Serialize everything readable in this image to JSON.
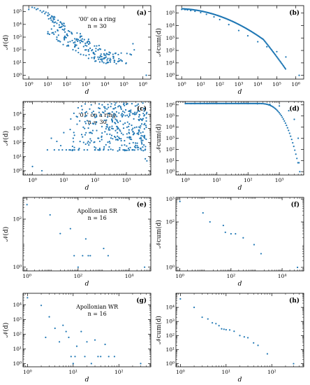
{
  "colors": {
    "marker": "#1f77b4",
    "axis": "#000000"
  },
  "chart_data": [
    {
      "panel": "(a)",
      "type": "scatter",
      "xscale": "log",
      "yscale": "log",
      "xlim": [
        0.5,
        2600000
      ],
      "ylim": [
        0.5,
        300000
      ],
      "ylabel": "𝒩(d)",
      "xlabel": "d",
      "xticks": [
        {
          "v": 1,
          "t": "10⁰"
        },
        {
          "v": 10,
          "t": "10¹"
        },
        {
          "v": 100,
          "t": "10²"
        },
        {
          "v": 1000,
          "t": "10³"
        },
        {
          "v": 10000,
          "t": "10⁴"
        },
        {
          "v": 100000,
          "t": "10⁵"
        },
        {
          "v": 1000000,
          "t": "10⁶"
        }
      ],
      "yticks": [
        {
          "v": 1,
          "t": "10⁰"
        },
        {
          "v": 10,
          "t": "10¹"
        },
        {
          "v": 100,
          "t": "10²"
        },
        {
          "v": 1000,
          "t": "10³"
        },
        {
          "v": 10000,
          "t": "10⁴"
        },
        {
          "v": 100000,
          "t": "10⁵"
        }
      ],
      "annotation": [
        "'00' on a ring",
        "n = 30"
      ],
      "gen": "a",
      "points": [
        [
          1,
          150000
        ],
        [
          1.5,
          220000
        ],
        [
          2,
          200000
        ],
        [
          2.5,
          150000
        ],
        [
          3,
          170000
        ],
        [
          4,
          120000
        ],
        [
          5,
          90000
        ],
        [
          6,
          110000
        ],
        [
          7,
          70000
        ],
        [
          8,
          90000
        ],
        [
          10,
          50000
        ],
        [
          12,
          60000
        ],
        [
          14,
          30000
        ],
        [
          16,
          45000
        ],
        [
          20,
          25000
        ],
        [
          25,
          15000
        ],
        [
          30,
          12000
        ],
        [
          40,
          9000
        ],
        [
          50,
          6000
        ],
        [
          60,
          4000
        ],
        [
          80,
          2500
        ],
        [
          100,
          1500
        ],
        [
          300000,
          300
        ],
        [
          350000,
          100
        ],
        [
          1500000,
          1
        ]
      ]
    },
    {
      "panel": "(b)",
      "type": "scatter",
      "xscale": "log",
      "yscale": "log",
      "xlim": [
        0.5,
        2600000
      ],
      "ylim": [
        0.5,
        400000
      ],
      "ylabel": "𝒩cum(d)",
      "xlabel": "d",
      "xticks": [
        {
          "v": 1,
          "t": "10⁰"
        },
        {
          "v": 10,
          "t": "10¹"
        },
        {
          "v": 100,
          "t": "10²"
        },
        {
          "v": 1000,
          "t": "10³"
        },
        {
          "v": 10000,
          "t": "10⁴"
        },
        {
          "v": 100000,
          "t": "10⁵"
        },
        {
          "v": 1000000,
          "t": "10⁶"
        }
      ],
      "yticks": [
        {
          "v": 1,
          "t": "10⁰"
        },
        {
          "v": 10,
          "t": "10¹"
        },
        {
          "v": 100,
          "t": "10²"
        },
        {
          "v": 1000,
          "t": "10³"
        },
        {
          "v": 10000,
          "t": "10⁴"
        },
        {
          "v": 100000,
          "t": "10⁵"
        }
      ],
      "gen": "b",
      "points": [
        [
          1,
          200000
        ],
        [
          1.5,
          190000
        ],
        [
          2,
          180000
        ],
        [
          3,
          160000
        ],
        [
          5,
          140000
        ],
        [
          10,
          110000
        ],
        [
          20,
          80000
        ],
        [
          50,
          50000
        ],
        [
          100,
          30000
        ],
        [
          300,
          12000
        ],
        [
          1000,
          4000
        ],
        [
          3000,
          1500
        ],
        [
          10000,
          500
        ],
        [
          30000,
          200
        ],
        [
          100000,
          80
        ],
        [
          300000,
          30
        ],
        [
          1500000,
          1
        ]
      ]
    },
    {
      "panel": "(c)",
      "type": "scatter",
      "xscale": "log",
      "yscale": "log",
      "xlim": [
        0.5,
        6000
      ],
      "ylim": [
        0.5,
        80000
      ],
      "ylabel": "𝒩(d)",
      "xlabel": "d",
      "xticks": [
        {
          "v": 1,
          "t": "10⁰"
        },
        {
          "v": 10,
          "t": "10¹"
        },
        {
          "v": 100,
          "t": "10²"
        },
        {
          "v": 1000,
          "t": "10³"
        }
      ],
      "yticks": [
        {
          "v": 1,
          "t": "10⁰"
        },
        {
          "v": 10,
          "t": "10¹"
        },
        {
          "v": 100,
          "t": "10²"
        },
        {
          "v": 1000,
          "t": "10³"
        },
        {
          "v": 10000,
          "t": "10⁴"
        }
      ],
      "annotation": [
        "'01' on a ring",
        "n = 30"
      ],
      "gen": "c",
      "points": [
        [
          1,
          2
        ],
        [
          2,
          1
        ],
        [
          3,
          30
        ],
        [
          4,
          200
        ],
        [
          5,
          30
        ],
        [
          6,
          120
        ],
        [
          7,
          30
        ],
        [
          8,
          60
        ],
        [
          9,
          30
        ],
        [
          10,
          500
        ],
        [
          12,
          30
        ],
        [
          15,
          30
        ],
        [
          20,
          200
        ],
        [
          30,
          30
        ],
        [
          4000,
          7
        ],
        [
          4500,
          5
        ]
      ]
    },
    {
      "panel": "(d)",
      "type": "scatter",
      "xscale": "log",
      "yscale": "log",
      "xlim": [
        0.5,
        6000
      ],
      "ylim": [
        0.5,
        2000000
      ],
      "ylabel": "𝒩cum(d)",
      "xlabel": "d",
      "xticks": [
        {
          "v": 1,
          "t": "10⁰"
        },
        {
          "v": 10,
          "t": "10¹"
        },
        {
          "v": 100,
          "t": "10²"
        },
        {
          "v": 1000,
          "t": "10³"
        }
      ],
      "yticks": [
        {
          "v": 1,
          "t": "10⁰"
        },
        {
          "v": 10,
          "t": "10¹"
        },
        {
          "v": 100,
          "t": "10²"
        },
        {
          "v": 1000,
          "t": "10³"
        },
        {
          "v": 10000,
          "t": "10⁴"
        },
        {
          "v": 100000,
          "t": "10⁵"
        },
        {
          "v": 1000000,
          "t": "10⁶"
        }
      ],
      "gen": "d",
      "points": [
        [
          1,
          1300000
        ],
        [
          1.5,
          1300000
        ],
        [
          2,
          1300000
        ],
        [
          3,
          1300000
        ],
        [
          5,
          1300000
        ],
        [
          10,
          1300000
        ],
        [
          20,
          1300000
        ],
        [
          50,
          1290000
        ],
        [
          100,
          1280000
        ],
        [
          200,
          1250000
        ],
        [
          500,
          1100000
        ],
        [
          1000,
          800000
        ],
        [
          2000,
          300000
        ],
        [
          3000,
          50000
        ],
        [
          4000,
          1000
        ],
        [
          4500,
          1
        ]
      ]
    },
    {
      "panel": "(e)",
      "type": "scatter",
      "xscale": "log",
      "yscale": "log",
      "xlim": [
        0.7,
        70000
      ],
      "ylim": [
        0.7,
        800
      ],
      "ylabel": "𝒩(d)",
      "xlabel": "d",
      "xticks": [
        {
          "v": 1,
          "t": "10⁰"
        },
        {
          "v": 100,
          "t": "10²"
        },
        {
          "v": 10000,
          "t": "10⁴"
        }
      ],
      "yticks": [
        {
          "v": 1,
          "t": "10⁰"
        },
        {
          "v": 100,
          "t": "10²"
        }
      ],
      "annotation": [
        "Apollonian SR",
        "n = 16"
      ],
      "points": [
        [
          1,
          400
        ],
        [
          8,
          150
        ],
        [
          20,
          25
        ],
        [
          50,
          40
        ],
        [
          70,
          3
        ],
        [
          100,
          1
        ],
        [
          150,
          3
        ],
        [
          200,
          15
        ],
        [
          250,
          3
        ],
        [
          300,
          3
        ],
        [
          1000,
          6
        ],
        [
          1500,
          3
        ],
        [
          40000,
          1
        ]
      ]
    },
    {
      "panel": "(f)",
      "type": "scatter",
      "xscale": "log",
      "yscale": "log",
      "xlim": [
        0.7,
        70000
      ],
      "ylim": [
        0.7,
        1200
      ],
      "ylabel": "𝒩cum(d)",
      "xlabel": "d",
      "xticks": [
        {
          "v": 1,
          "t": "10⁰"
        },
        {
          "v": 100,
          "t": "10²"
        },
        {
          "v": 10000,
          "t": "10⁴"
        }
      ],
      "yticks": [
        {
          "v": 1,
          "t": "10⁰"
        },
        {
          "v": 100,
          "t": "10²"
        },
        {
          "v": 1000,
          "t": "10³"
        }
      ],
      "points": [
        [
          1,
          800
        ],
        [
          8,
          250
        ],
        [
          15,
          100
        ],
        [
          50,
          70
        ],
        [
          60,
          35
        ],
        [
          100,
          30
        ],
        [
          150,
          30
        ],
        [
          300,
          20
        ],
        [
          800,
          10
        ],
        [
          1500,
          4
        ],
        [
          40000,
          1
        ]
      ]
    },
    {
      "panel": "(g)",
      "type": "scatter",
      "xscale": "log",
      "yscale": "log",
      "xlim": [
        0.8,
        500
      ],
      "ylim": [
        0.6,
        60000
      ],
      "ylabel": "𝒩(d)",
      "xlabel": "d",
      "xticks": [
        {
          "v": 1,
          "t": "10⁰"
        },
        {
          "v": 10,
          "t": "10¹"
        },
        {
          "v": 100,
          "t": "10²"
        }
      ],
      "yticks": [
        {
          "v": 1,
          "t": "10⁰"
        },
        {
          "v": 10,
          "t": "10¹"
        },
        {
          "v": 100,
          "t": "10²"
        },
        {
          "v": 1000,
          "t": "10³"
        },
        {
          "v": 10000,
          "t": "10⁴"
        }
      ],
      "annotation": [
        "Apollonian WR",
        "n = 16"
      ],
      "points": [
        [
          1,
          30000
        ],
        [
          2,
          9000
        ],
        [
          2.5,
          60
        ],
        [
          3,
          1500
        ],
        [
          4,
          250
        ],
        [
          5,
          30
        ],
        [
          6,
          400
        ],
        [
          7,
          150
        ],
        [
          8,
          60
        ],
        [
          9,
          3
        ],
        [
          10,
          1
        ],
        [
          11,
          3
        ],
        [
          12,
          15
        ],
        [
          15,
          150
        ],
        [
          18,
          3
        ],
        [
          20,
          30
        ],
        [
          25,
          1
        ],
        [
          30,
          40
        ],
        [
          35,
          3
        ],
        [
          40,
          3
        ],
        [
          50,
          20
        ],
        [
          60,
          3
        ],
        [
          80,
          3
        ],
        [
          300,
          1
        ]
      ]
    },
    {
      "panel": "(h)",
      "type": "scatter",
      "xscale": "log",
      "yscale": "log",
      "xlim": [
        0.8,
        500
      ],
      "ylim": [
        0.6,
        100000
      ],
      "ylabel": "𝒩cum(d)",
      "xlabel": "d",
      "xticks": [
        {
          "v": 1,
          "t": "10⁰"
        },
        {
          "v": 10,
          "t": "10¹"
        },
        {
          "v": 100,
          "t": "10²"
        }
      ],
      "yticks": [
        {
          "v": 1,
          "t": "10⁰"
        },
        {
          "v": 10,
          "t": "10¹"
        },
        {
          "v": 100,
          "t": "10²"
        },
        {
          "v": 1000,
          "t": "10³"
        },
        {
          "v": 10000,
          "t": "10⁴"
        }
      ],
      "points": [
        [
          1,
          40000
        ],
        [
          2,
          10000
        ],
        [
          3,
          2000
        ],
        [
          4,
          1500
        ],
        [
          5,
          800
        ],
        [
          6,
          700
        ],
        [
          7,
          500
        ],
        [
          8,
          300
        ],
        [
          9,
          280
        ],
        [
          10,
          260
        ],
        [
          12,
          250
        ],
        [
          15,
          200
        ],
        [
          20,
          100
        ],
        [
          25,
          80
        ],
        [
          30,
          70
        ],
        [
          40,
          30
        ],
        [
          50,
          20
        ],
        [
          80,
          5
        ],
        [
          300,
          1
        ]
      ]
    }
  ]
}
